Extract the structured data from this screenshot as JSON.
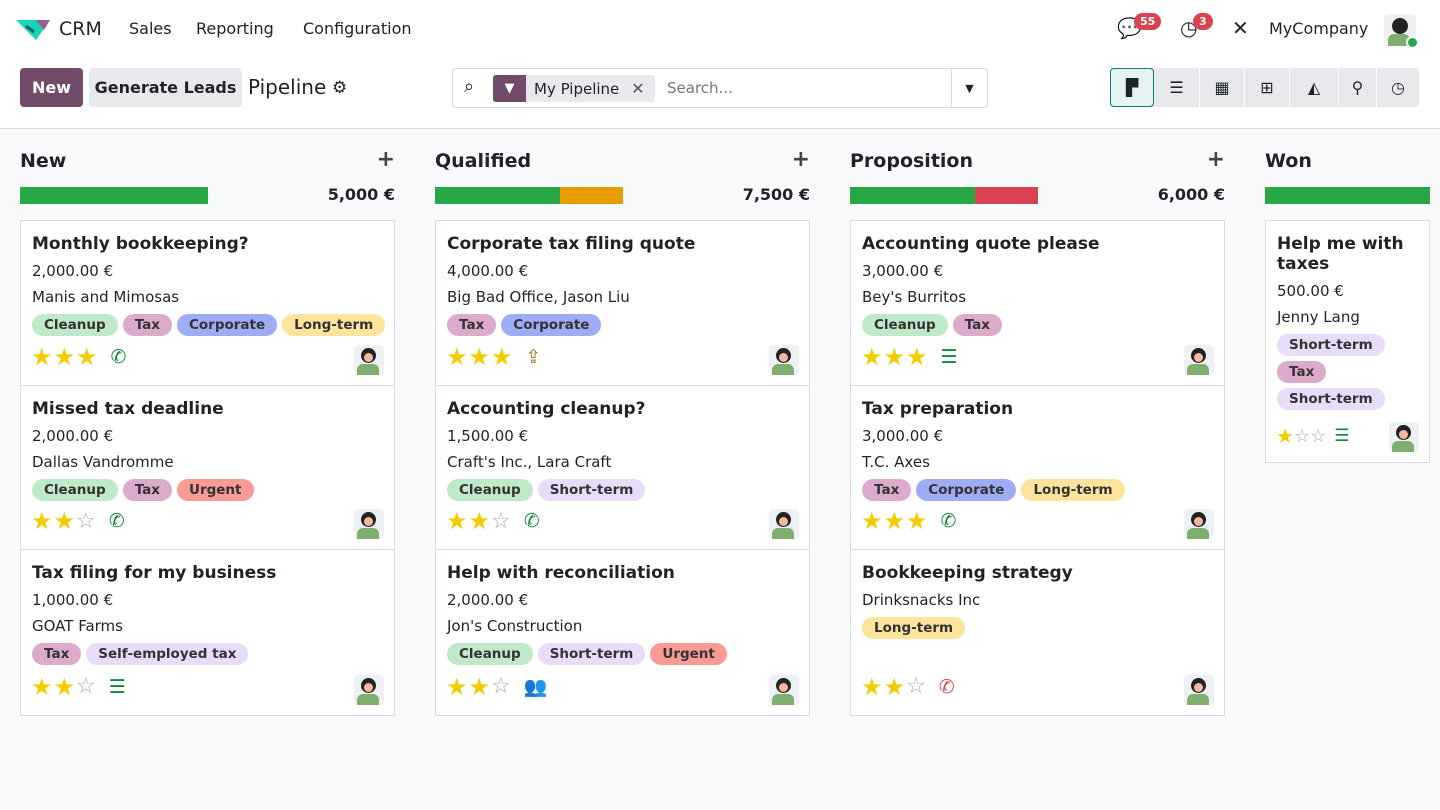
{
  "nav": {
    "app": "CRM",
    "menus": [
      "Sales",
      "Reporting",
      "Configuration"
    ],
    "messages_count": "55",
    "activities_count": "3",
    "company": "MyCompany"
  },
  "cp": {
    "new_label": "New",
    "generate_label": "Generate Leads",
    "title": "Pipeline",
    "facet": "My Pipeline",
    "search_placeholder": "Search...",
    "views": [
      "kanban-icon",
      "list-icon",
      "calendar-icon",
      "pivot-icon",
      "graph-icon",
      "map-icon",
      "activity-icon"
    ]
  },
  "colors": {
    "green": "#28a745",
    "orange": "#e99d00",
    "red": "#d9434f",
    "accent": "#714b67"
  },
  "tag_colors": {
    "Cleanup": "#bfe9c8",
    "Tax": "#dcaacb",
    "Corporate": "#9fabf5",
    "Long-term": "#fce49c",
    "Urgent": "#f99a94",
    "Short-term": "#e8dcf9",
    "Self-employed tax": "#e8dcf9"
  },
  "columns": [
    {
      "name": "New",
      "total": "5,000 €",
      "progress": [
        {
          "color": "green",
          "value": 1
        }
      ],
      "cards": [
        {
          "title": "Monthly bookkeeping?",
          "amount": "2,000.00 €",
          "customer": "Manis and Mimosas",
          "tags": [
            "Cleanup",
            "Tax",
            "Corporate",
            "Long-term"
          ],
          "stars": 3,
          "activity": "phone-icon"
        },
        {
          "title": "Missed tax deadline",
          "amount": "2,000.00 €",
          "customer": "Dallas Vandromme",
          "tags": [
            "Cleanup",
            "Tax",
            "Urgent"
          ],
          "stars": 2,
          "activity": "phone-icon"
        },
        {
          "title": "Tax filing for my business",
          "amount": "1,000.00 €",
          "customer": "GOAT Farms",
          "tags": [
            "Tax",
            "Self-employed tax"
          ],
          "stars": 2,
          "activity": "list-icon"
        }
      ]
    },
    {
      "name": "Qualified",
      "total": "7,500 €",
      "progress": [
        {
          "color": "green",
          "value": 0.667
        },
        {
          "color": "orange",
          "value": 0.333
        }
      ],
      "cards": [
        {
          "title": "Corporate tax filing quote",
          "amount": "4,000.00 €",
          "customer": "Big Bad Office, Jason Liu",
          "tags": [
            "Tax",
            "Corporate"
          ],
          "stars": 3,
          "activity": "upload-icon"
        },
        {
          "title": "Accounting cleanup?",
          "amount": "1,500.00 €",
          "customer": "Craft's Inc., Lara Craft",
          "tags": [
            "Cleanup",
            "Short-term"
          ],
          "stars": 2,
          "activity": "phone-icon"
        },
        {
          "title": "Help with reconciliation",
          "amount": "2,000.00 €",
          "customer": "Jon's Construction",
          "tags": [
            "Cleanup",
            "Short-term",
            "Urgent"
          ],
          "stars": 2,
          "activity": "meeting-icon"
        }
      ]
    },
    {
      "name": "Proposition",
      "total": "6,000 €",
      "progress": [
        {
          "color": "green",
          "value": 0.667
        },
        {
          "color": "red",
          "value": 0.333
        }
      ],
      "cards": [
        {
          "title": "Accounting quote please",
          "amount": "3,000.00 €",
          "customer": "Bey's Burritos",
          "tags": [
            "Cleanup",
            "Tax"
          ],
          "stars": 3,
          "activity": "list-icon"
        },
        {
          "title": "Tax preparation",
          "amount": "3,000.00 €",
          "customer": "T.C. Axes",
          "tags": [
            "Tax",
            "Corporate",
            "Long-term"
          ],
          "stars": 3,
          "activity": "phone-icon"
        },
        {
          "title": "Bookkeeping strategy",
          "amount": "",
          "customer": "Drinksnacks Inc",
          "tags": [
            "Long-term"
          ],
          "stars": 2,
          "activity": "phone-overdue-icon"
        }
      ]
    },
    {
      "name": "Won",
      "total": "",
      "progress": [
        {
          "color": "green",
          "value": 1
        }
      ],
      "cards": [
        {
          "title": "Help me with taxes",
          "amount": "500.00 €",
          "customer": "Jenny Lang",
          "tags": [
            "Short-term",
            "Tax",
            "Short-term"
          ],
          "stars": 1,
          "activity": "list-icon"
        }
      ]
    }
  ]
}
